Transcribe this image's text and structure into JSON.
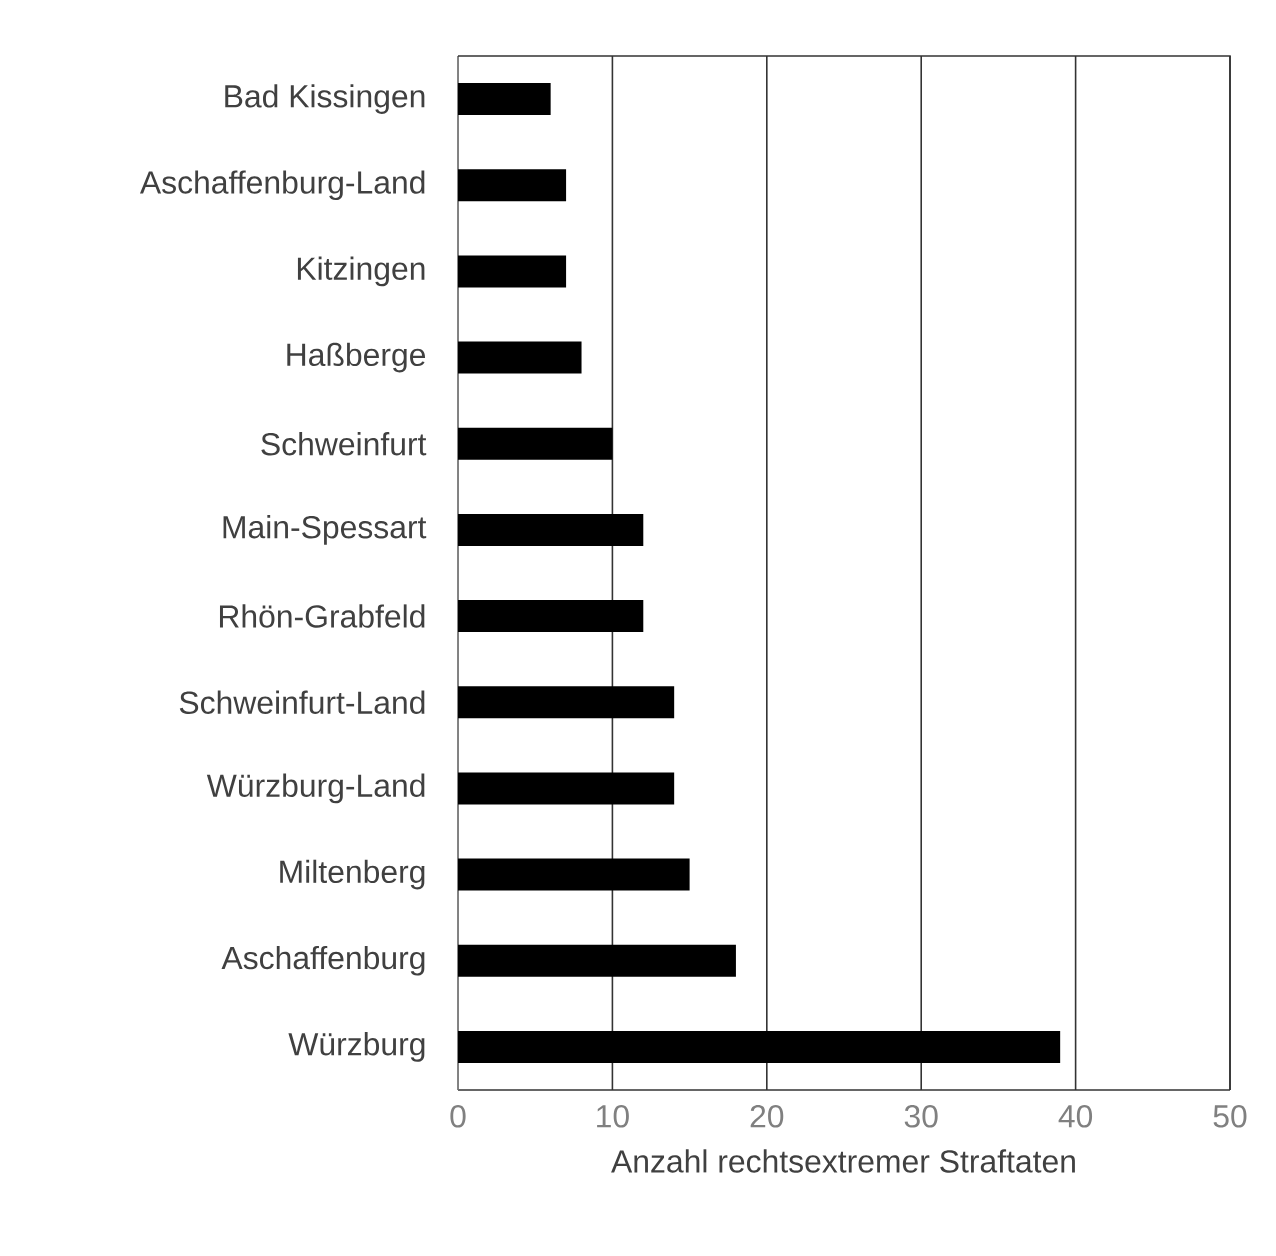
{
  "chart_data": {
    "type": "bar",
    "orientation": "horizontal",
    "categories": [
      "Bad Kissingen",
      "Aschaffenburg-Land",
      "Kitzingen",
      "Haßberge",
      "Schweinfurt",
      "Main-Spessart",
      "Rhön-Grabfeld",
      "Schweinfurt-Land",
      "Würzburg-Land",
      "Miltenberg",
      "Aschaffenburg",
      "Würzburg"
    ],
    "values": [
      6,
      7,
      7,
      8,
      10,
      12,
      12,
      14,
      14,
      15,
      18,
      39
    ],
    "color": "#000000",
    "xlim": [
      0,
      50
    ],
    "xticks": [
      0,
      10,
      20,
      30,
      40,
      50
    ],
    "xlabel": "Anzahl rechtsextremer Straftaten",
    "grid": "x"
  }
}
